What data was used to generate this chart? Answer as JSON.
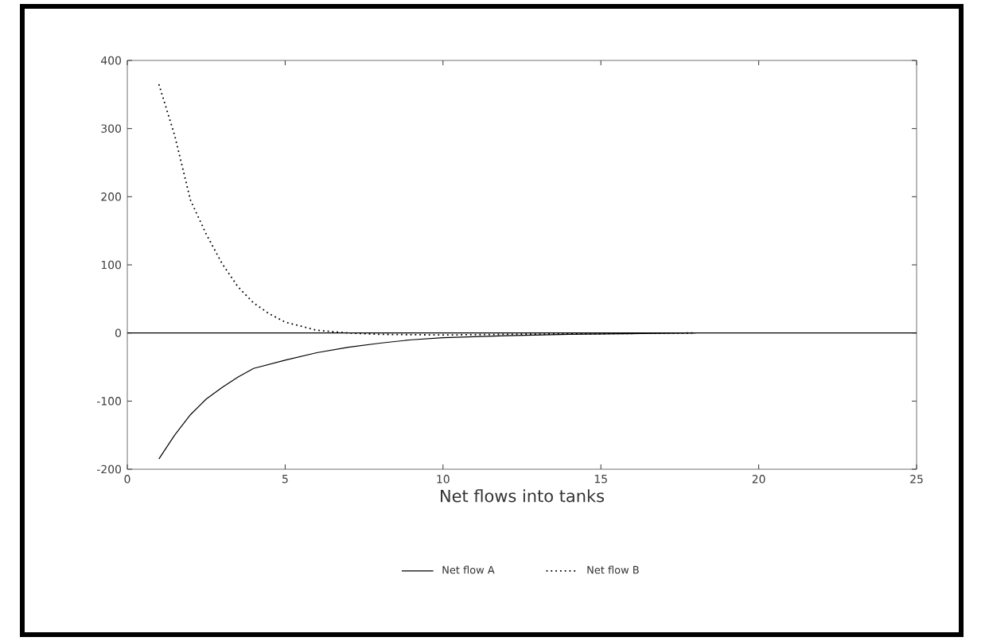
{
  "chart_data": {
    "type": "line",
    "xlabel": "Net flows into tanks",
    "xlim": [
      0,
      25
    ],
    "ylim": [
      -200,
      400
    ],
    "xticks": [
      0,
      5,
      10,
      15,
      20,
      25
    ],
    "yticks": [
      -200,
      -100,
      0,
      100,
      200,
      300,
      400
    ],
    "grid": false,
    "legend": "bottom",
    "marker": "none",
    "ref_lines": [
      {
        "axis": "y",
        "value": 0,
        "color": "#000000",
        "line_style": "solid"
      }
    ],
    "series": [
      {
        "name": "Net flow A",
        "color": "#000000",
        "line_style": "solid",
        "x": [
          1,
          1.5,
          2,
          2.5,
          3,
          3.5,
          4,
          5,
          6,
          7,
          8,
          9,
          10,
          12,
          14,
          16,
          18
        ],
        "values": [
          -185,
          -150,
          -120,
          -97,
          -80,
          -65,
          -52,
          -40,
          -29,
          -21,
          -15,
          -10,
          -7,
          -4,
          -2,
          -1,
          0
        ]
      },
      {
        "name": "Net flow B",
        "color": "#000000",
        "line_style": "dotted",
        "x": [
          1,
          1.5,
          2,
          2.5,
          3,
          3.5,
          4,
          4.5,
          5,
          5.5,
          6,
          7,
          8,
          10,
          12,
          15,
          18
        ],
        "values": [
          365,
          290,
          195,
          145,
          102,
          68,
          44,
          28,
          16,
          10,
          4,
          0,
          -2,
          -3,
          -2,
          -1,
          0
        ]
      }
    ]
  }
}
